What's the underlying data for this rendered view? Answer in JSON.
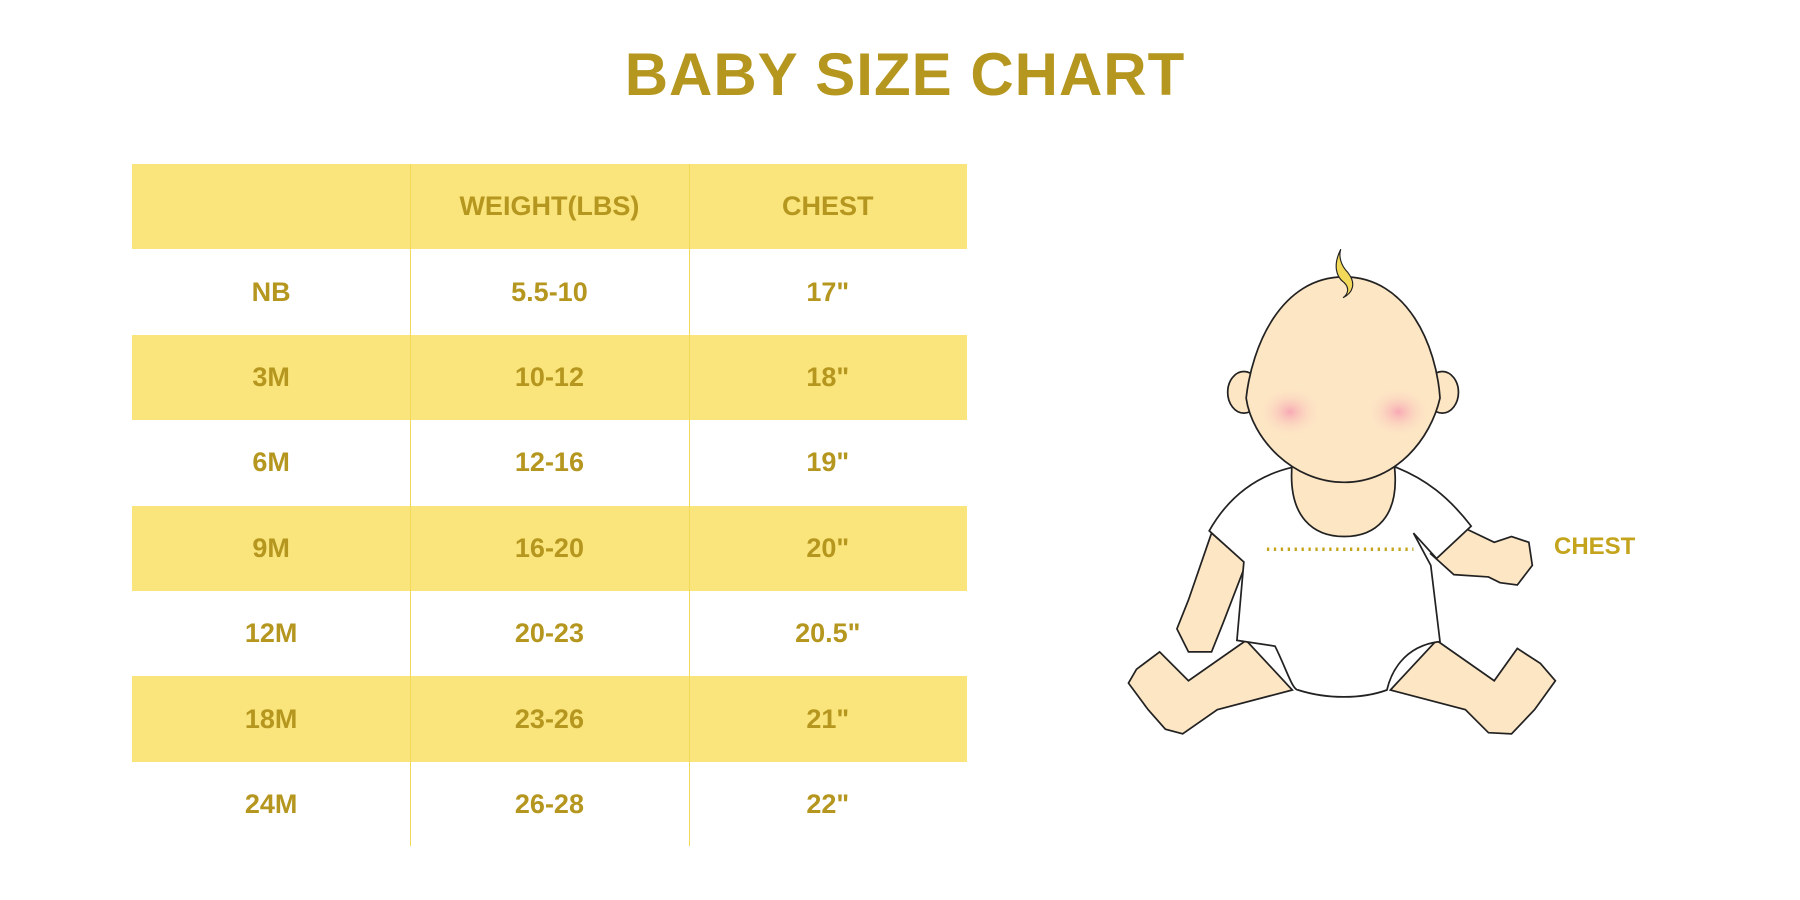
{
  "title": "BABY SIZE CHART",
  "colors": {
    "text": "#b5961e",
    "row_fill": "#fae47c",
    "divider": "#f3d95a"
  },
  "table": {
    "headers": [
      "",
      "WEIGHT(LBS)",
      "CHEST"
    ],
    "rows": [
      [
        "NB",
        "5.5-10",
        "17\""
      ],
      [
        "3M",
        "10-12",
        "18\""
      ],
      [
        "6M",
        "12-16",
        "19\""
      ],
      [
        "9M",
        "16-20",
        "20\""
      ],
      [
        "12M",
        "20-23",
        "20.5\""
      ],
      [
        "18M",
        "23-26",
        "21\""
      ],
      [
        "24M",
        "26-28",
        "22\""
      ]
    ]
  },
  "illustration": {
    "chest_label": "CHEST"
  }
}
